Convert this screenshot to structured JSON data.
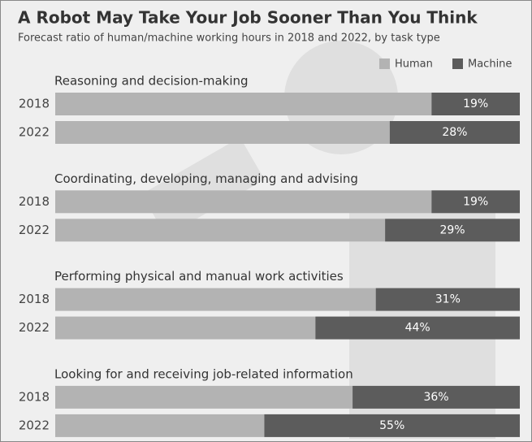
{
  "chart_data": {
    "type": "stacked_bar",
    "title": "A Robot May Take Your Job Sooner Than You Think",
    "subtitle": "Forecast ratio of human/machine working hours in 2018 and 2022, by task type",
    "groups": [
      "Reasoning and decision-making",
      "Coordinating, developing, managing and advising",
      "Performing physical and manual work activities",
      "Looking for and receiving job-related information"
    ],
    "categories": [
      "2018",
      "2022",
      "2018",
      "2022",
      "2018",
      "2022",
      "2018",
      "2022"
    ],
    "xlim": [
      0,
      100
    ],
    "series": [
      {
        "name": "Human",
        "color": "#b3b3b3",
        "values": [
          81,
          72,
          81,
          71,
          69,
          56,
          64,
          45
        ]
      },
      {
        "name": "Machine",
        "color": "#5c5c5c",
        "values": [
          19,
          28,
          19,
          29,
          31,
          44,
          36,
          55
        ],
        "value_labels": [
          "19%",
          "28%",
          "19%",
          "29%",
          "31%",
          "44%",
          "36%",
          "55%"
        ]
      }
    ]
  }
}
